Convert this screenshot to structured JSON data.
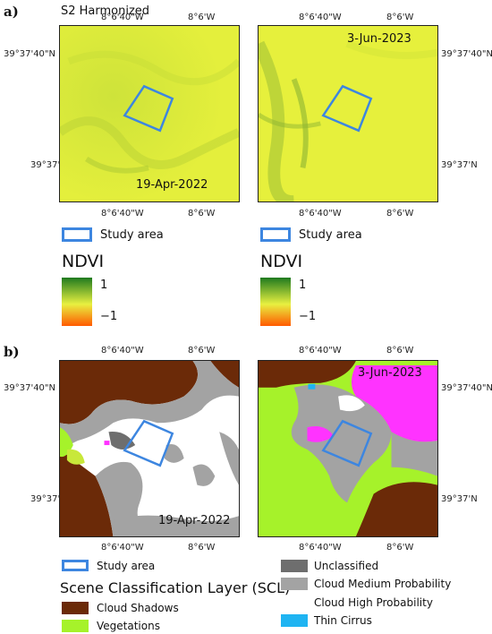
{
  "panel_a": {
    "letter": "a)",
    "caption": "S2 Harmonized",
    "top_lon_label": "8°6'40\"W",
    "top_lon_label2": "8°6'W",
    "lat_top": "39°37'40\"N",
    "lat_bottom": "39°37'N",
    "bottom_lon_label": "8°6'40\"W",
    "bottom_lon_label2": "8°6'W",
    "left_date": "19-Apr-2022",
    "right_date": "3-Jun-2023",
    "study_area_label": "Study area",
    "ndvi_title": "NDVI",
    "ndvi_max": "1",
    "ndvi_min": "−1"
  },
  "panel_b": {
    "letter": "b)",
    "top_lon_label": "8°6'40\"W",
    "top_lon_label2": "8°6'W",
    "lat_top": "39°37'40\"N",
    "lat_bottom": "39°37'N",
    "bottom_lon_label": "8°6'40\"W",
    "bottom_lon_label2": "8°6'W",
    "left_date": "19-Apr-2022",
    "right_date": "3-Jun-2023",
    "study_area_label": "Study area",
    "scl_title": "Scene Classification Layer (SCL)",
    "classes": {
      "cloud_shadows": "Cloud Shadows",
      "vegetations": "Vegetations",
      "unclassified": "Unclassified",
      "cloud_medium": "Cloud Medium Probability",
      "cloud_high": "Cloud High Probability",
      "thin_cirrus": "Thin Cirrus"
    }
  },
  "colors": {
    "ndvi_high": "#1f7a1f",
    "ndvi_mid": "#e8f040",
    "ndvi_low": "#ff5a00",
    "study_area": "#3d86e0",
    "cloud_shadows": "#6b2a08",
    "vegetations": "#a6f22a",
    "unclassified": "#6e6e6e",
    "cloud_medium": "#a3a3a3",
    "cloud_high": "#ffffff",
    "thin_cirrus": "#1fb4f2",
    "snow": "#ff33ff"
  }
}
